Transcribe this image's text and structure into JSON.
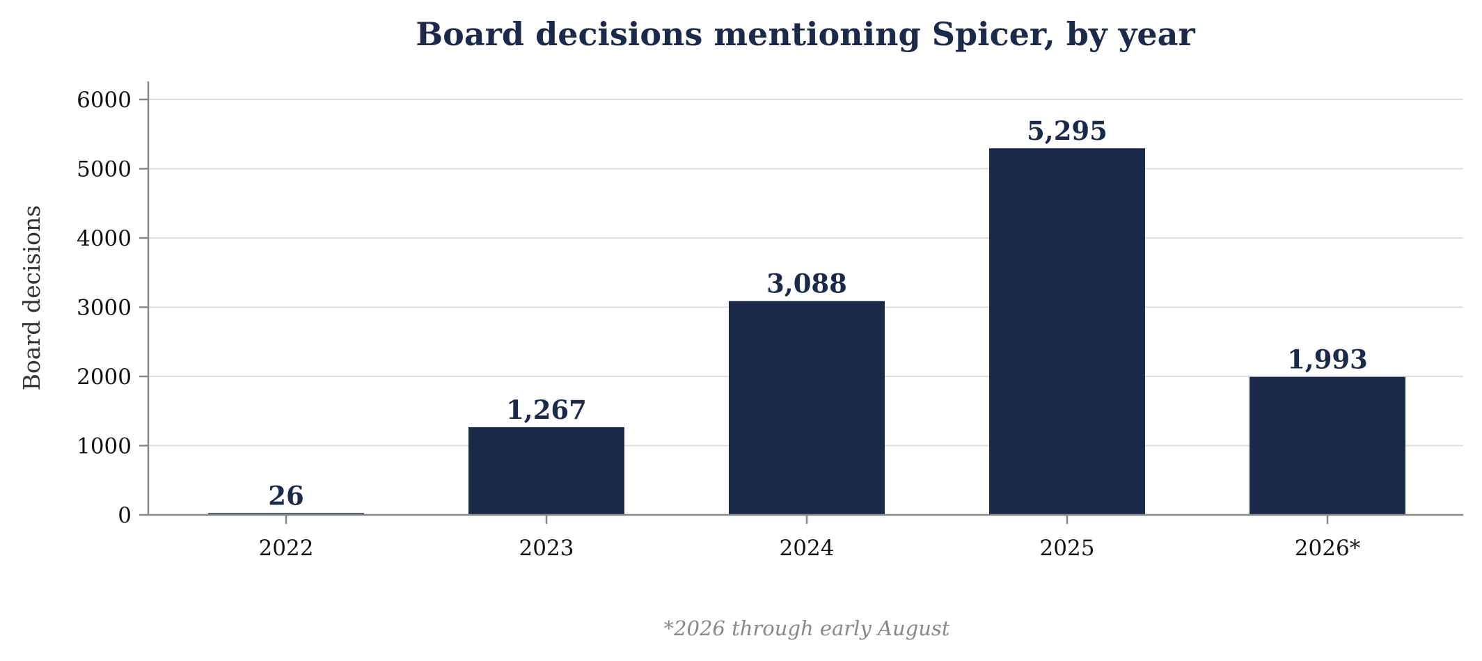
{
  "chart_data": {
    "type": "bar",
    "title": "Board decisions mentioning Spicer, by year",
    "xlabel": "",
    "ylabel": "Board decisions",
    "categories": [
      "2022",
      "2023",
      "2024",
      "2025",
      "2026*"
    ],
    "values": [
      26,
      1267,
      3088,
      5295,
      1993
    ],
    "value_labels": [
      "26",
      "1,267",
      "3,088",
      "5,295",
      "1,993"
    ],
    "ylim": [
      0,
      6000
    ],
    "yticks": [
      0,
      1000,
      2000,
      3000,
      4000,
      5000,
      6000
    ],
    "ytick_labels": [
      "0",
      "1000",
      "2000",
      "3000",
      "4000",
      "5000",
      "6000"
    ],
    "grid": "horizontal",
    "bar_color": "#1c2a4a",
    "footnote": "*2026 through early August"
  }
}
